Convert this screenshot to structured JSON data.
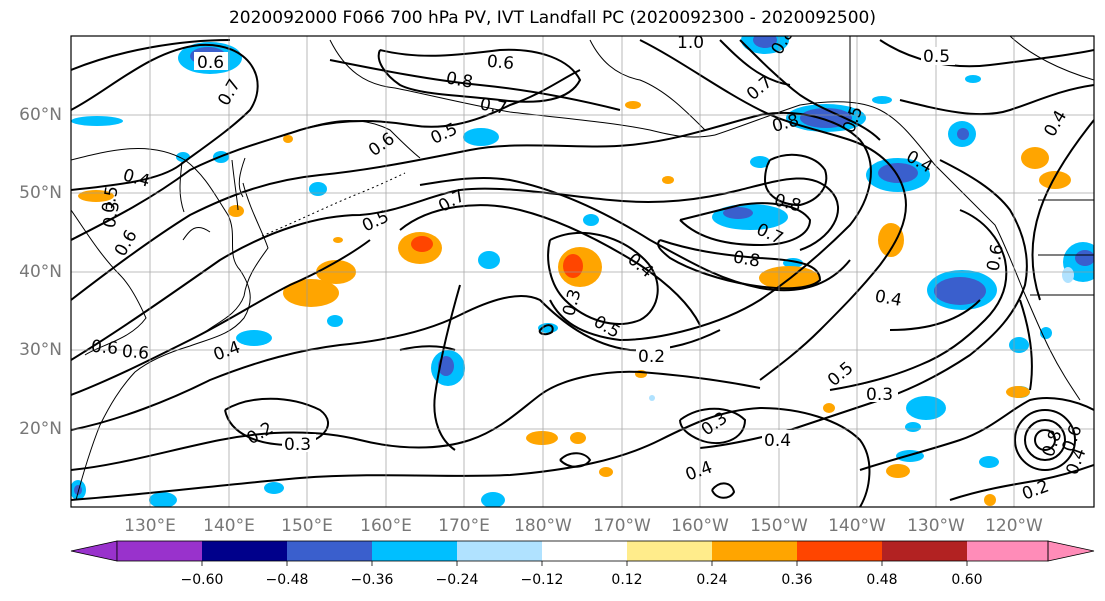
{
  "title": "2020092000 F066 700 hPa PV, IVT Landfall PC (2020092300 - 2020092500)",
  "latitude_labels": [
    "60°N",
    "50°N",
    "40°N",
    "30°N",
    "20°N"
  ],
  "longitude_labels": [
    "130°E",
    "140°E",
    "150°E",
    "160°E",
    "170°E",
    "180°W",
    "170°W",
    "160°W",
    "150°W",
    "140°W",
    "130°W",
    "120°W"
  ],
  "colorbar": {
    "tick_labels": [
      "−0.60",
      "−0.48",
      "−0.36",
      "−0.24",
      "−0.12",
      "0.12",
      "0.24",
      "0.36",
      "0.48",
      "0.60"
    ],
    "colors": [
      "#9932cc",
      "#00008b",
      "#3a5fcd",
      "#00bfff",
      "#b0e2ff",
      "#ffffff",
      "#ffec8b",
      "#ffa500",
      "#ff4500",
      "#b22222",
      "#ff8cb8"
    ]
  },
  "contour_labels": [
    "1.0",
    "0.6",
    "0.8",
    "0.5",
    "0.7",
    "0.7",
    "0.8",
    "0.4",
    "0.5",
    "0.6",
    "0.7",
    "0.8",
    "0.5",
    "0.4",
    "0.6",
    "0.7",
    "0.6",
    "0.5",
    "0.4",
    "0.8",
    "0.7",
    "0.8",
    "0.3",
    "0.4",
    "0.6",
    "0.5",
    "0.3",
    "0.5",
    "0.4",
    "0.6",
    "0.6",
    "0.5",
    "0.2",
    "0.4",
    "0.3",
    "0.3",
    "0.2",
    "0.3",
    "0.4",
    "0.4",
    "0.2",
    "0.8",
    "0.6",
    "0.4"
  ],
  "colors": {
    "contour": "#000000",
    "grid": "#9a9a9a",
    "axis_labels": "#777777"
  }
}
